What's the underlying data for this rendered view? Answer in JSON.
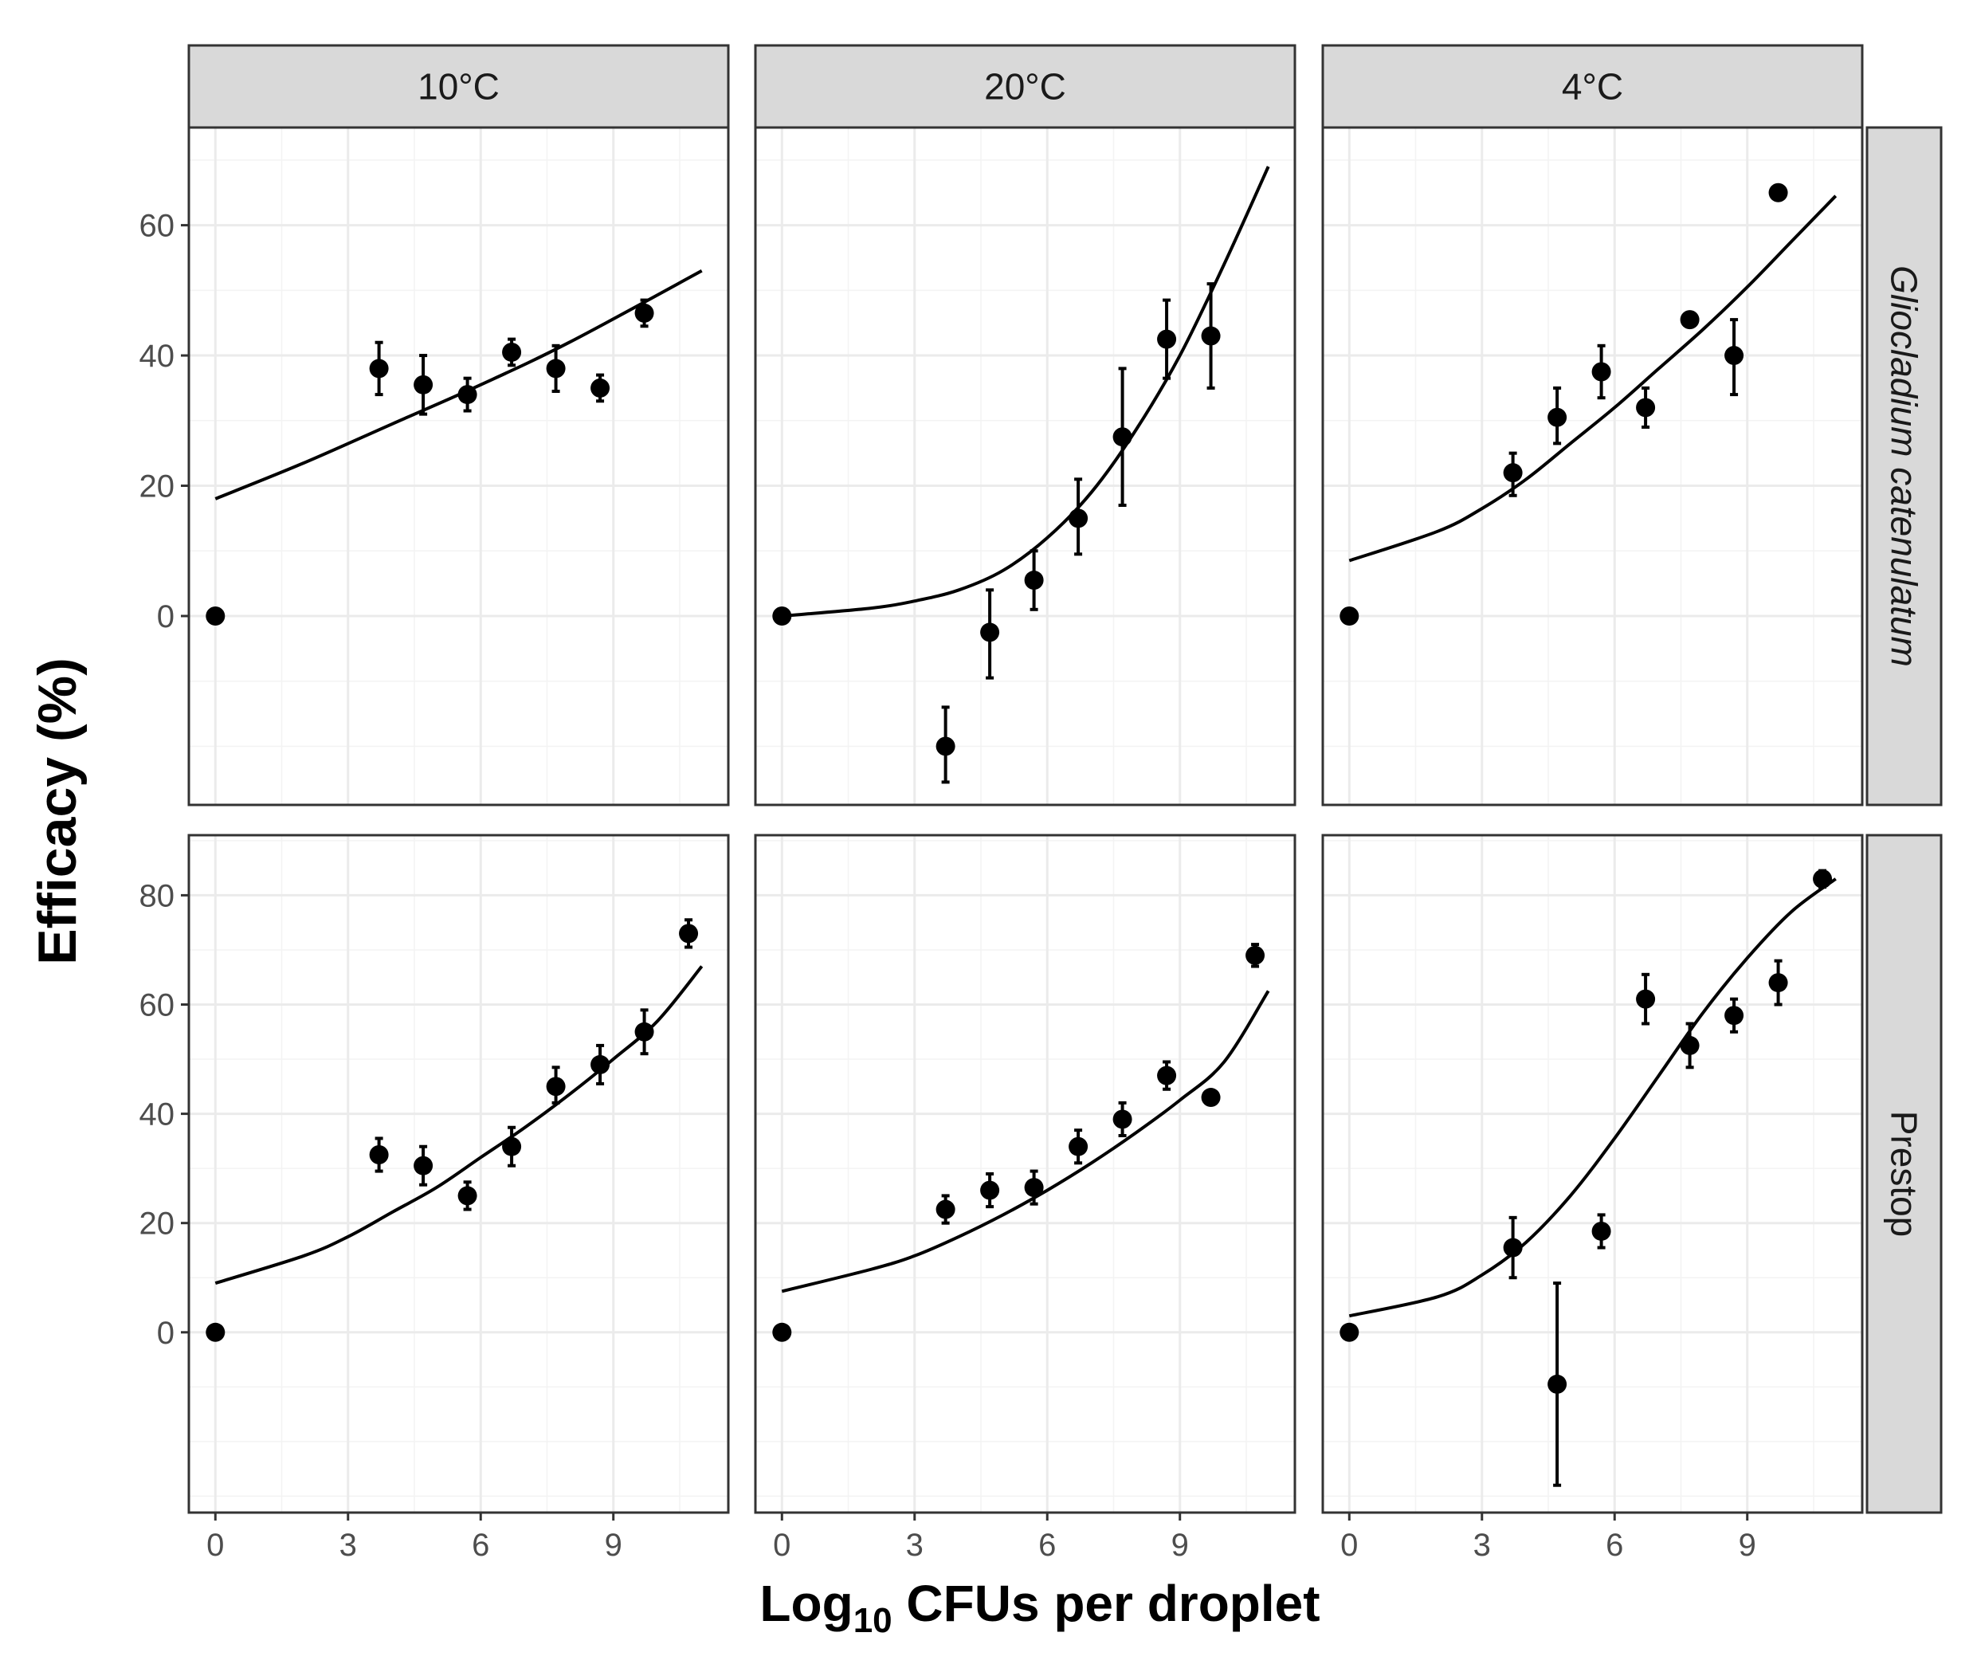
{
  "chart_data": {
    "type": "scatter",
    "facet_columns": [
      "10°C",
      "20°C",
      "4°C"
    ],
    "facet_rows": [
      "Gliocladium catenulatum",
      "Prestop"
    ],
    "xlabel_main": "Log",
    "xlabel_sub": "10",
    "xlabel_rest": " CFUs per droplet",
    "ylabel": "Efficacy (%)",
    "x_ticks": [
      "0",
      "3",
      "6",
      "9"
    ],
    "x_tick_values": [
      0,
      3,
      6,
      9
    ],
    "xlim": [
      -0.6,
      11.6
    ],
    "rows": [
      {
        "ylim": [
          -29,
          75
        ],
        "y_ticks": [
          "0",
          "20",
          "40",
          "60"
        ],
        "y_tick_values": [
          0,
          20,
          40,
          60
        ]
      },
      {
        "ylim": [
          -33,
          91
        ],
        "y_ticks": [
          "0",
          "20",
          "40",
          "60",
          "80"
        ],
        "y_tick_values": [
          0,
          20,
          40,
          60,
          80
        ]
      }
    ],
    "panels": [
      {
        "row": 0,
        "col": 0,
        "points": [
          {
            "x": 0,
            "y": 0
          },
          {
            "x": 3.7,
            "y": 38,
            "ymin": 34,
            "ymax": 42
          },
          {
            "x": 4.7,
            "y": 35.5,
            "ymin": 31,
            "ymax": 40
          },
          {
            "x": 5.7,
            "y": 34,
            "ymin": 31.5,
            "ymax": 36.5
          },
          {
            "x": 6.7,
            "y": 40.5,
            "ymin": 38.5,
            "ymax": 42.5
          },
          {
            "x": 7.7,
            "y": 38,
            "ymin": 34.5,
            "ymax": 41.5
          },
          {
            "x": 8.7,
            "y": 35,
            "ymin": 33,
            "ymax": 37
          },
          {
            "x": 9.7,
            "y": 46.5,
            "ymin": 44.5,
            "ymax": 48.5
          }
        ],
        "fit": {
          "x": [
            0,
            2,
            4,
            6,
            8,
            11
          ],
          "y": [
            18,
            23.5,
            29.5,
            35.5,
            42,
            53
          ]
        }
      },
      {
        "row": 0,
        "col": 1,
        "points": [
          {
            "x": 0,
            "y": 0
          },
          {
            "x": 3.7,
            "y": -20,
            "ymin": -25.5,
            "ymax": -14
          },
          {
            "x": 4.7,
            "y": -2.5,
            "ymin": -9.5,
            "ymax": 4
          },
          {
            "x": 5.7,
            "y": 5.5,
            "ymin": 1,
            "ymax": 10
          },
          {
            "x": 6.7,
            "y": 15,
            "ymin": 9.5,
            "ymax": 21
          },
          {
            "x": 7.7,
            "y": 27.5,
            "ymin": 17,
            "ymax": 38
          },
          {
            "x": 8.7,
            "y": 42.5,
            "ymin": 36.5,
            "ymax": 48.5
          },
          {
            "x": 9.7,
            "y": 43,
            "ymin": 35,
            "ymax": 51
          }
        ],
        "fit": {
          "x": [
            0,
            2,
            3,
            4,
            5,
            6,
            7,
            8,
            9,
            10,
            11
          ],
          "y": [
            0,
            1.2,
            2.3,
            4,
            7,
            12,
            19,
            28.5,
            40,
            54,
            69
          ]
        }
      },
      {
        "row": 0,
        "col": 2,
        "points": [
          {
            "x": 0,
            "y": 0
          },
          {
            "x": 3.7,
            "y": 22,
            "ymin": 18.5,
            "ymax": 25
          },
          {
            "x": 4.7,
            "y": 30.5,
            "ymin": 26.5,
            "ymax": 35
          },
          {
            "x": 5.7,
            "y": 37.5,
            "ymin": 33.5,
            "ymax": 41.5
          },
          {
            "x": 6.7,
            "y": 32,
            "ymin": 29,
            "ymax": 35
          },
          {
            "x": 7.7,
            "y": 45.5,
            "ymin": 44.5,
            "ymax": 46.5
          },
          {
            "x": 8.7,
            "y": 40,
            "ymin": 34,
            "ymax": 45.5
          },
          {
            "x": 9.7,
            "y": 65
          }
        ],
        "fit": {
          "x": [
            0,
            2,
            3,
            4,
            5,
            6,
            7,
            8,
            9,
            10,
            11
          ],
          "y": [
            8.5,
            13,
            16.5,
            21,
            26.5,
            32,
            38,
            44,
            50.5,
            57.5,
            64.5
          ]
        }
      },
      {
        "row": 1,
        "col": 0,
        "points": [
          {
            "x": 0,
            "y": 0
          },
          {
            "x": 3.7,
            "y": 32.5,
            "ymin": 29.5,
            "ymax": 35.5
          },
          {
            "x": 4.7,
            "y": 30.5,
            "ymin": 27,
            "ymax": 34
          },
          {
            "x": 5.7,
            "y": 25,
            "ymin": 22.5,
            "ymax": 27.5
          },
          {
            "x": 6.7,
            "y": 34,
            "ymin": 30.5,
            "ymax": 37.5
          },
          {
            "x": 7.7,
            "y": 45,
            "ymin": 42,
            "ymax": 48.5
          },
          {
            "x": 8.7,
            "y": 49,
            "ymin": 45.5,
            "ymax": 52.5
          },
          {
            "x": 9.7,
            "y": 55,
            "ymin": 51,
            "ymax": 59
          },
          {
            "x": 10.7,
            "y": 73,
            "ymin": 70.5,
            "ymax": 75.5
          }
        ],
        "fit": {
          "x": [
            0,
            2,
            3,
            4,
            5,
            6,
            7,
            8,
            9,
            10,
            11
          ],
          "y": [
            9,
            14,
            17.5,
            22,
            26.5,
            32,
            37.5,
            43.5,
            50,
            57,
            67
          ]
        }
      },
      {
        "row": 1,
        "col": 1,
        "points": [
          {
            "x": 0,
            "y": 0
          },
          {
            "x": 3.7,
            "y": 22.5,
            "ymin": 20,
            "ymax": 25
          },
          {
            "x": 4.7,
            "y": 26,
            "ymin": 23,
            "ymax": 29
          },
          {
            "x": 5.7,
            "y": 26.5,
            "ymin": 23.5,
            "ymax": 29.5
          },
          {
            "x": 6.7,
            "y": 34,
            "ymin": 31,
            "ymax": 37
          },
          {
            "x": 7.7,
            "y": 39,
            "ymin": 36,
            "ymax": 42
          },
          {
            "x": 8.7,
            "y": 47,
            "ymin": 44.5,
            "ymax": 49.5
          },
          {
            "x": 9.7,
            "y": 43
          },
          {
            "x": 10.7,
            "y": 69,
            "ymin": 67,
            "ymax": 71
          }
        ],
        "fit": {
          "x": [
            0,
            2,
            3,
            4,
            5,
            6,
            7,
            8,
            9,
            10,
            11
          ],
          "y": [
            7.5,
            11.5,
            14,
            17.5,
            21.5,
            26,
            31,
            36.5,
            42.5,
            49.5,
            62.5
          ]
        }
      },
      {
        "row": 1,
        "col": 2,
        "points": [
          {
            "x": 0,
            "y": 0
          },
          {
            "x": 3.7,
            "y": 15.5,
            "ymin": 10,
            "ymax": 21
          },
          {
            "x": 4.7,
            "y": -9.5,
            "ymin": -28,
            "ymax": 9
          },
          {
            "x": 5.7,
            "y": 18.5,
            "ymin": 15.5,
            "ymax": 21.5
          },
          {
            "x": 6.7,
            "y": 61,
            "ymin": 56.5,
            "ymax": 65.5
          },
          {
            "x": 7.7,
            "y": 52.5,
            "ymin": 48.5,
            "ymax": 56.5
          },
          {
            "x": 8.7,
            "y": 58,
            "ymin": 55,
            "ymax": 61
          },
          {
            "x": 9.7,
            "y": 64,
            "ymin": 60,
            "ymax": 68
          },
          {
            "x": 10.7,
            "y": 83,
            "ymin": 81.5,
            "ymax": 84.5
          }
        ],
        "fit": {
          "x": [
            0,
            2,
            3,
            4,
            5,
            6,
            7,
            8,
            9,
            10,
            11
          ],
          "y": [
            3,
            6.5,
            10.5,
            16.5,
            25,
            35.5,
            47,
            58.5,
            68.5,
            77,
            83
          ]
        }
      }
    ]
  }
}
